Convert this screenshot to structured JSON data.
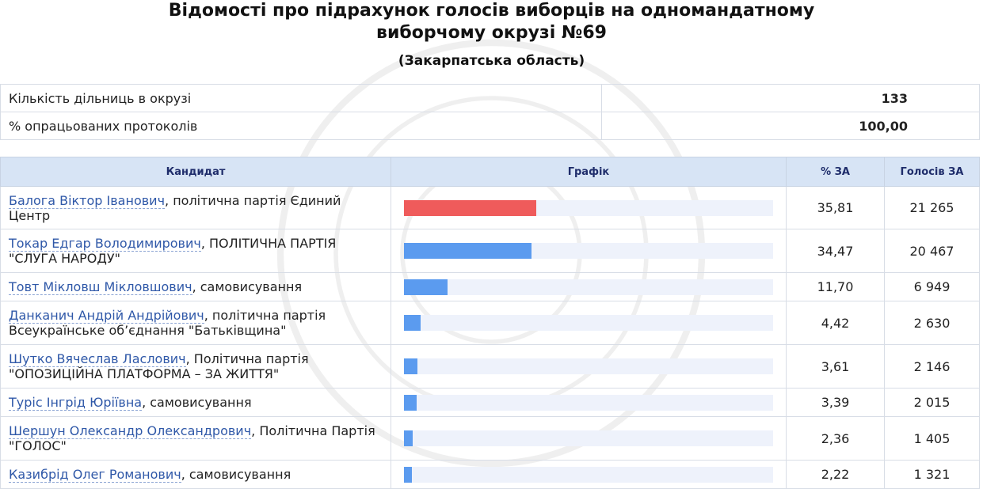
{
  "header": {
    "title_line1": "Відомості про підрахунок голосів виборців на одномандатному",
    "title_line2": "виборчому окрузі №69",
    "region": "(Закарпатська область)"
  },
  "summary": [
    {
      "label": "Кількість дільниць в окрузі",
      "value": "133"
    },
    {
      "label": "% опрацьованих протоколів",
      "value": "100,00"
    }
  ],
  "columns": {
    "candidate": "Кандидат",
    "graph": "Графік",
    "pct": "% ЗА",
    "votes": "Голосів ЗА"
  },
  "colors": {
    "leader": "#ef5b5b",
    "other": "#5b9bef"
  },
  "rows": [
    {
      "name": "Балога Віктор Іванович",
      "party": ", політична партія Єдиний Центр",
      "pct": "35,81",
      "pct_value": 35.81,
      "votes": "21 265",
      "leader": true
    },
    {
      "name": "Токар Едгар Володимирович",
      "party": ", ПОЛІТИЧНА ПАРТІЯ \"СЛУГА НАРОДУ\"",
      "pct": "34,47",
      "pct_value": 34.47,
      "votes": "20 467",
      "leader": false
    },
    {
      "name": "Товт Мікловш Мікловшович",
      "party": ", самовисування",
      "pct": "11,70",
      "pct_value": 11.7,
      "votes": "6 949",
      "leader": false
    },
    {
      "name": "Данканич Андрій Андрійович",
      "party": ", політична партія Всеукраїнське об’єднання \"Батьківщина\"",
      "pct": "4,42",
      "pct_value": 4.42,
      "votes": "2 630",
      "leader": false
    },
    {
      "name": "Шутко Вячеслав Ласлович",
      "party": ", Політична партія \"ОПОЗИЦІЙНА ПЛАТФОРМА – ЗА ЖИТТЯ\"",
      "pct": "3,61",
      "pct_value": 3.61,
      "votes": "2 146",
      "leader": false
    },
    {
      "name": "Туріс Інгрід Юріївна",
      "party": ", самовисування",
      "pct": "3,39",
      "pct_value": 3.39,
      "votes": "2 015",
      "leader": false
    },
    {
      "name": "Шершун Олександр Олександрович",
      "party": ", Політична Партія \"ГОЛОС\"",
      "pct": "2,36",
      "pct_value": 2.36,
      "votes": "1 405",
      "leader": false
    },
    {
      "name": "Казибрід Олег Романович",
      "party": ", самовисування",
      "pct": "2,22",
      "pct_value": 2.22,
      "votes": "1 321",
      "leader": false
    }
  ]
}
